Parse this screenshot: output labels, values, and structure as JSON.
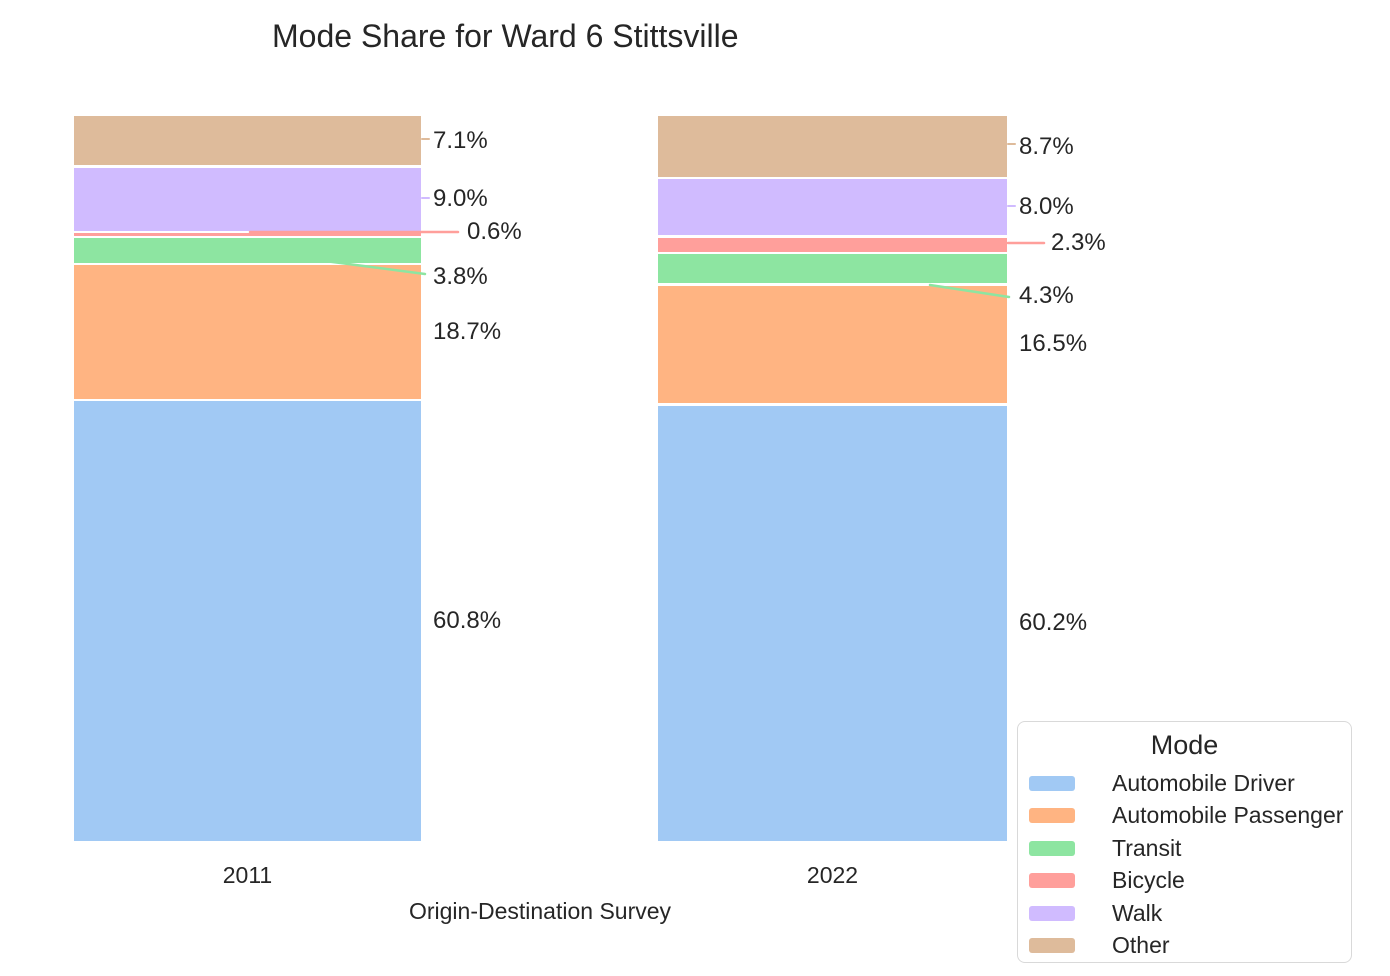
{
  "title": "Mode Share for Ward 6 Stittsville",
  "xlabel": "Origin-Destination Survey",
  "legend": {
    "title": "Mode",
    "position": "lower right"
  },
  "chart_data": {
    "type": "bar",
    "stacked": true,
    "orientation": "vertical",
    "categories": [
      "2011",
      "2022"
    ],
    "series": [
      {
        "name": "Automobile Driver",
        "color": "#a1c9f4",
        "values": [
          60.8,
          60.2
        ],
        "labels": [
          "60.8%",
          "60.2%"
        ]
      },
      {
        "name": "Automobile Passenger",
        "color": "#ffb482",
        "values": [
          18.7,
          16.5
        ],
        "labels": [
          "18.7%",
          "16.5%"
        ]
      },
      {
        "name": "Transit",
        "color": "#8de5a1",
        "values": [
          3.8,
          4.3
        ],
        "labels": [
          "3.8%",
          "4.3%"
        ]
      },
      {
        "name": "Bicycle",
        "color": "#ff9f9b",
        "values": [
          0.6,
          2.3
        ],
        "labels": [
          "0.6%",
          "2.3%"
        ]
      },
      {
        "name": "Walk",
        "color": "#d0bbff",
        "values": [
          9.0,
          8.0
        ],
        "labels": [
          "9.0%",
          "8.0%"
        ]
      },
      {
        "name": "Other",
        "color": "#debb9b",
        "values": [
          7.1,
          8.7
        ],
        "labels": [
          "7.1%",
          "8.7%"
        ]
      }
    ],
    "title": "Mode Share for Ward 6 Stittsville",
    "xlabel": "Origin-Destination Survey",
    "ylabel": "",
    "ylim": [
      0,
      100
    ],
    "grid": false,
    "legend_title": "Mode",
    "legend_position": "lower right",
    "stack_order_bottom_to_top": [
      "Automobile Driver",
      "Automobile Passenger",
      "Transit",
      "Bicycle",
      "Walk",
      "Other"
    ]
  }
}
